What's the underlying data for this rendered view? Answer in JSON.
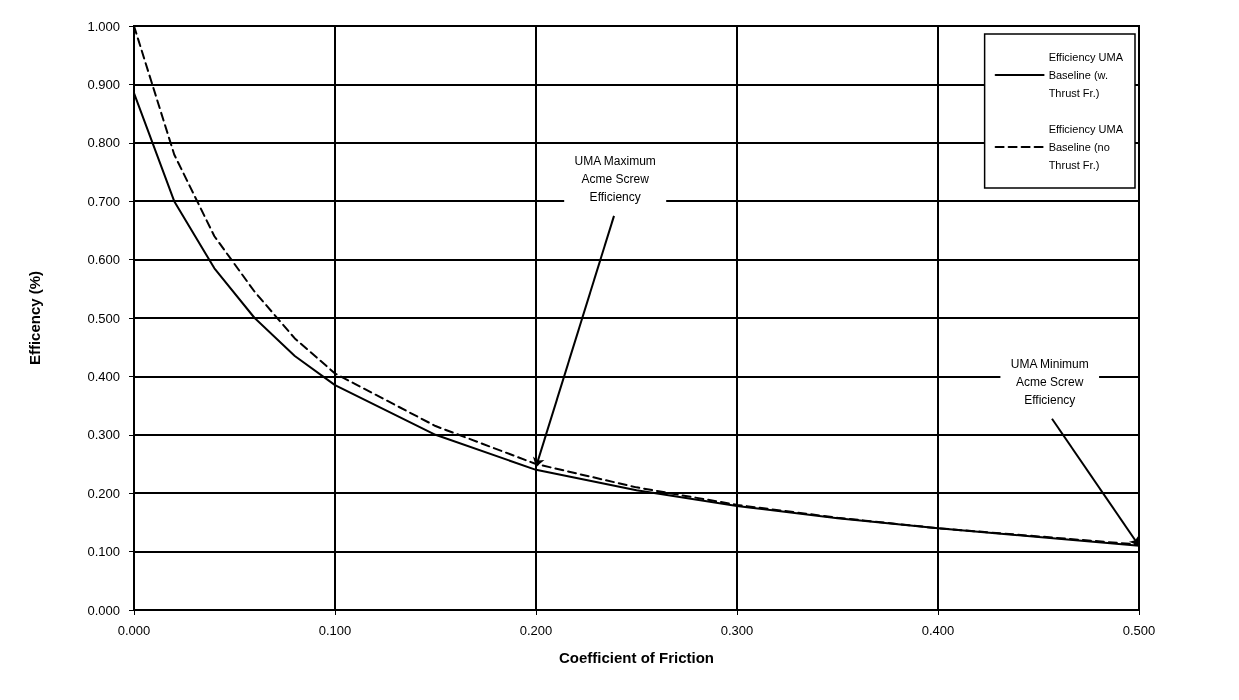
{
  "chart_data": {
    "type": "line",
    "xlabel": "Coefficient of Friction",
    "ylabel": "Efficency (%)",
    "xlim": [
      0,
      0.5
    ],
    "ylim": [
      0,
      1
    ],
    "xticks": [
      {
        "value": 0,
        "label": "0.000"
      },
      {
        "value": 0.1,
        "label": "0.100"
      },
      {
        "value": 0.2,
        "label": "0.200"
      },
      {
        "value": 0.3,
        "label": "0.300"
      },
      {
        "value": 0.4,
        "label": "0.400"
      },
      {
        "value": 0.5,
        "label": "0.500"
      }
    ],
    "yticks": [
      {
        "value": 0,
        "label": "0.000"
      },
      {
        "value": 0.1,
        "label": "0.100"
      },
      {
        "value": 0.2,
        "label": "0.200"
      },
      {
        "value": 0.3,
        "label": "0.300"
      },
      {
        "value": 0.4,
        "label": "0.400"
      },
      {
        "value": 0.5,
        "label": "0.500"
      },
      {
        "value": 0.6,
        "label": "0.600"
      },
      {
        "value": 0.7,
        "label": "0.700"
      },
      {
        "value": 0.8,
        "label": "0.800"
      },
      {
        "value": 0.9,
        "label": "0.900"
      },
      {
        "value": 1,
        "label": "1.000"
      }
    ],
    "x": [
      0,
      0.02,
      0.04,
      0.06,
      0.08,
      0.1,
      0.15,
      0.2,
      0.25,
      0.3,
      0.35,
      0.4,
      0.45,
      0.5
    ],
    "series": [
      {
        "name": "Efficiency UMA Baseline (w. Thrust Fr.)",
        "color": "#000000",
        "line_style": "solid",
        "values": [
          0.885,
          0.7,
          0.585,
          0.5,
          0.435,
          0.385,
          0.3,
          0.24,
          0.205,
          0.178,
          0.157,
          0.14,
          0.125,
          0.11
        ]
      },
      {
        "name": "Efficiency UMA Baseline (no Thrust Fr.)",
        "color": "#000000",
        "line_style": "dashed",
        "values": [
          1.0,
          0.78,
          0.64,
          0.545,
          0.465,
          0.405,
          0.315,
          0.25,
          0.21,
          0.18,
          0.158,
          0.14,
          0.126,
          0.112
        ]
      }
    ],
    "annotations": [
      {
        "text": "UMA Maximum\nAcme Screw\nEfficiency",
        "x": 0.2,
        "y": 0.245
      },
      {
        "text": "UMA Minimum\nAcme Screw\nEfficiency",
        "x": 0.5,
        "y": 0.11
      }
    ],
    "grid": true,
    "legend": "top right",
    "marker": "none"
  }
}
